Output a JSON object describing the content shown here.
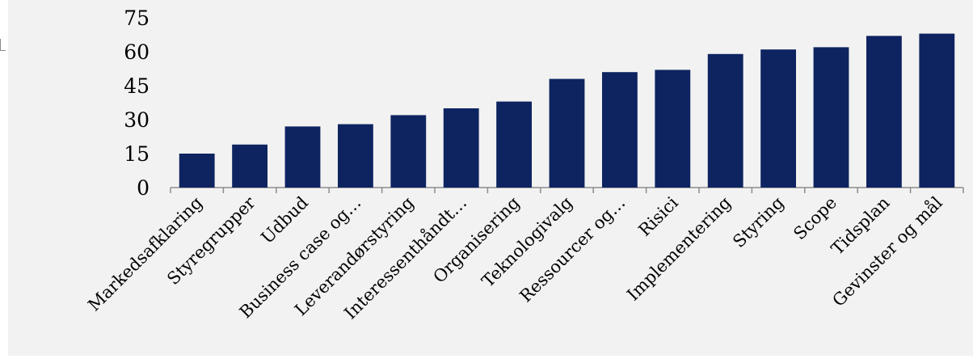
{
  "chart_data": {
    "type": "bar",
    "categories": [
      "Markedsafklaring",
      "Styregrupper",
      "Udbud",
      "Business case og…",
      "Leverandørstyring",
      "Interessenthåndt…",
      "Organisering",
      "Teknologivalg",
      "Ressourcer og…",
      "Risici",
      "Implementering",
      "Styring",
      "Scope",
      "Tidsplan",
      "Gevinster og mål"
    ],
    "values": [
      15,
      19,
      27,
      28,
      32,
      35,
      38,
      48,
      51,
      52,
      59,
      61,
      62,
      67,
      68
    ],
    "ylim": [
      0,
      75
    ],
    "yticks": [
      "0",
      "15",
      "30",
      "45",
      "60",
      "75"
    ],
    "bar_color": "#0e2461",
    "background_color": "#f2f2f2",
    "grid": false,
    "legend": "none"
  }
}
